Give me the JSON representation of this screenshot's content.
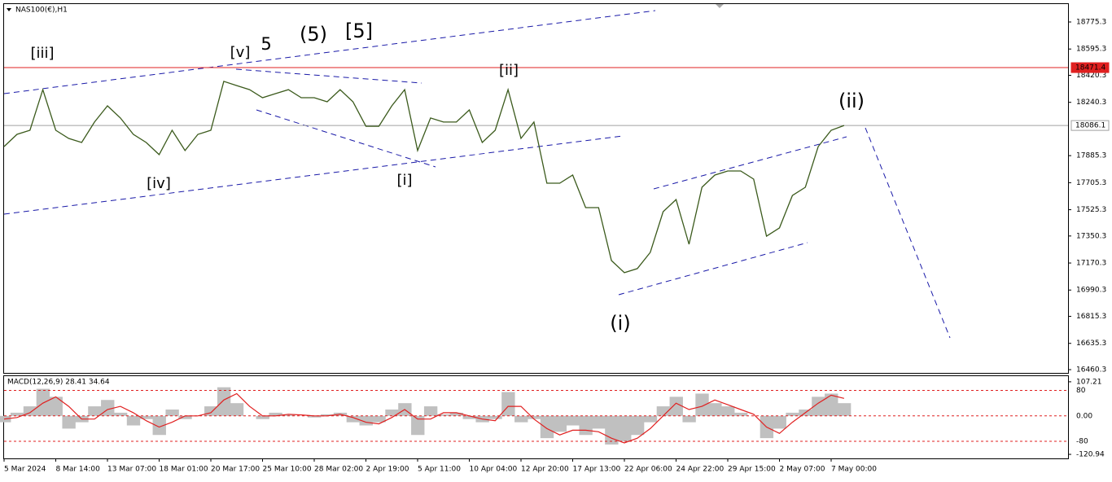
{
  "chart_data": [
    {
      "type": "line",
      "title": "NAS100(€),H1",
      "color": "#3b5a1c",
      "values": [
        17946,
        18027,
        18054,
        18325,
        18054,
        18000,
        17973,
        18109,
        18217,
        18136,
        18027,
        17973,
        17892,
        18054,
        17919,
        18027,
        18054,
        18380,
        18352,
        18325,
        18271,
        18298,
        18325,
        18271,
        18271,
        18244,
        18325,
        18244,
        18081,
        18081,
        18217,
        18325,
        17919,
        18136,
        18109,
        18109,
        18190,
        17973,
        18054,
        18325,
        18000,
        18109,
        17702,
        17702,
        17756,
        17539,
        17539,
        17187,
        17106,
        17133,
        17241,
        17512,
        17593,
        17295,
        17675,
        17756,
        17783,
        17783,
        17729,
        17349,
        17404,
        17620,
        17675,
        17946,
        18054,
        18086
      ],
      "ylim": [
        16438.6,
        18894.6
      ],
      "yticks": [
        18775.3,
        18595.3,
        18420.3,
        18240.3,
        17885.3,
        17705.3,
        17525.3,
        17350.3,
        17170.3,
        16990.3,
        16815.3,
        16635.3,
        16460.3
      ],
      "price_lines": [
        {
          "value": 18471.4,
          "color": "#e02020"
        },
        {
          "value": 18086.1,
          "color": "#a0a0a0"
        }
      ],
      "annotations": [
        {
          "text": "[iii]",
          "color": "#2e8b2e"
        },
        {
          "text": "[iv]",
          "color": "#2e8b2e"
        },
        {
          "text": "[v]",
          "color": "#2e8b2e"
        },
        {
          "text": "5",
          "color": "#1c2fd6"
        },
        {
          "text": "(5)",
          "color": "#e01818"
        },
        {
          "text": "[5]",
          "color": "#111111"
        },
        {
          "text": "[ii]",
          "color": "#2e8b2e"
        },
        {
          "text": "[i]",
          "color": "#2e8b2e"
        },
        {
          "text": "(i)",
          "color": "#1c2fd6"
        },
        {
          "text": "(ii)",
          "color": "#1c2fd6"
        }
      ]
    },
    {
      "type": "macd",
      "title": "MACD(12,26,9) 28.41 34.64",
      "categories": [
        "5 Mar 2024",
        null,
        null,
        null,
        "8 Mar 14:00",
        null,
        null,
        null,
        "13 Mar 07:00",
        null,
        null,
        null,
        "18 Mar 01:00",
        null,
        null,
        null,
        "20 Mar 17:00",
        null,
        null,
        null,
        "25 Mar 10:00",
        null,
        null,
        null,
        "28 Mar 02:00",
        null,
        null,
        null,
        "2 Apr 19:00",
        null,
        null,
        null,
        "5 Apr 11:00",
        null,
        null,
        null,
        "10 Apr 04:00",
        null,
        null,
        null,
        "12 Apr 20:00",
        null,
        null,
        null,
        "17 Apr 13:00",
        null,
        null,
        null,
        "22 Apr 06:00",
        null,
        null,
        null,
        "24 Apr 22:00",
        null,
        null,
        null,
        "29 Apr 15:00",
        null,
        null,
        null,
        "2 May 07:00",
        null,
        null,
        null,
        "7 May 00:00",
        null
      ],
      "series": [
        {
          "color": "#c0c0c0",
          "kind": "area",
          "values": [
            -20,
            10,
            30,
            85,
            60,
            -40,
            -20,
            30,
            50,
            10,
            -30,
            -10,
            -60,
            20,
            -10,
            0,
            30,
            90,
            40,
            0,
            -10,
            10,
            5,
            0,
            -5,
            5,
            10,
            -20,
            -30,
            -20,
            20,
            40,
            -60,
            30,
            5,
            10,
            -10,
            -20,
            -10,
            75,
            -20,
            -10,
            -70,
            -50,
            -30,
            -60,
            -40,
            -90,
            -80,
            -60,
            -20,
            30,
            60,
            -20,
            70,
            40,
            30,
            10,
            0,
            -70,
            -40,
            10,
            20,
            60,
            70,
            40
          ]
        },
        {
          "color": "#e02020",
          "kind": "line",
          "values": [
            -10,
            -5,
            10,
            40,
            60,
            30,
            -10,
            -10,
            20,
            30,
            10,
            -15,
            -35,
            -20,
            0,
            0,
            10,
            50,
            70,
            30,
            0,
            0,
            5,
            3,
            0,
            0,
            5,
            -5,
            -20,
            -25,
            -5,
            20,
            -10,
            -10,
            10,
            10,
            0,
            -10,
            -15,
            30,
            30,
            -10,
            -40,
            -60,
            -45,
            -45,
            -50,
            -70,
            -85,
            -70,
            -40,
            0,
            40,
            20,
            30,
            50,
            35,
            20,
            5,
            -35,
            -55,
            -20,
            10,
            40,
            65,
            55
          ]
        }
      ],
      "ylim": [
        -133.6,
        124.9
      ],
      "yticks": [
        107.21,
        80,
        {
          "value": 0,
          "label": "0.00"
        },
        {
          "value": -80,
          "label": "-80"
        },
        -120.94
      ],
      "level_color": "#e02020"
    }
  ]
}
